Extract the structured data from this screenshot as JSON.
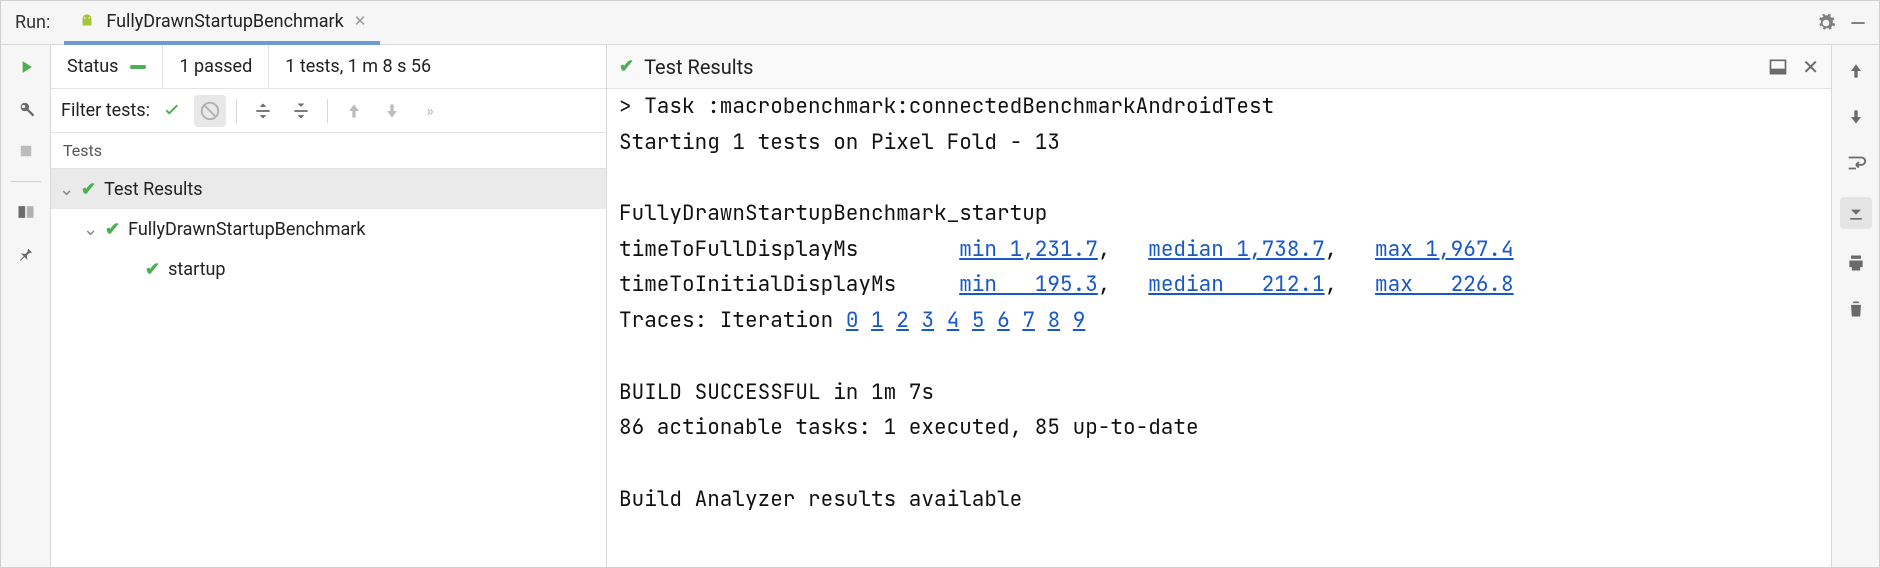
{
  "colors": {
    "accent_tab": "#6b9bd1",
    "green": "#4caf50",
    "link": "#1858c7",
    "border": "#d9d9d9",
    "bg_panel": "#f6f6f6"
  },
  "fonts": {
    "ui_size": 18,
    "mono_size": 21
  },
  "title": {
    "run_label": "Run:"
  },
  "tab": {
    "label": "FullyDrawnStartupBenchmark"
  },
  "status": {
    "label": "Status",
    "passed": "1 passed",
    "summary": "1 tests, 1 m 8 s 56"
  },
  "filter": {
    "label": "Filter tests:"
  },
  "tests_header": "Tests",
  "tree": {
    "root": "Test Results",
    "class": "FullyDrawnStartupBenchmark",
    "method": "startup"
  },
  "console_header": {
    "title": "Test Results"
  },
  "console": {
    "lines": [
      "> Task :macrobenchmark:connectedBenchmarkAndroidTest",
      "Starting 1 tests on Pixel Fold - 13",
      "",
      "FullyDrawnStartupBenchmark_startup"
    ],
    "metric1": {
      "label": "timeToFullDisplayMs",
      "min": "min 1,231.7",
      "median": "median 1,738.7",
      "max": "max 1,967.4"
    },
    "metric2": {
      "label": "timeToInitialDisplayMs",
      "min": "min   195.3",
      "median": "median   212.1",
      "max": "max   226.8"
    },
    "traces_label": "Traces: Iteration",
    "traces": [
      "0",
      "1",
      "2",
      "3",
      "4",
      "5",
      "6",
      "7",
      "8",
      "9"
    ],
    "build1": "BUILD SUCCESSFUL in 1m 7s",
    "build2": "86 actionable tasks: 1 executed, 85 up-to-date",
    "analyzer": "Build Analyzer results available"
  }
}
